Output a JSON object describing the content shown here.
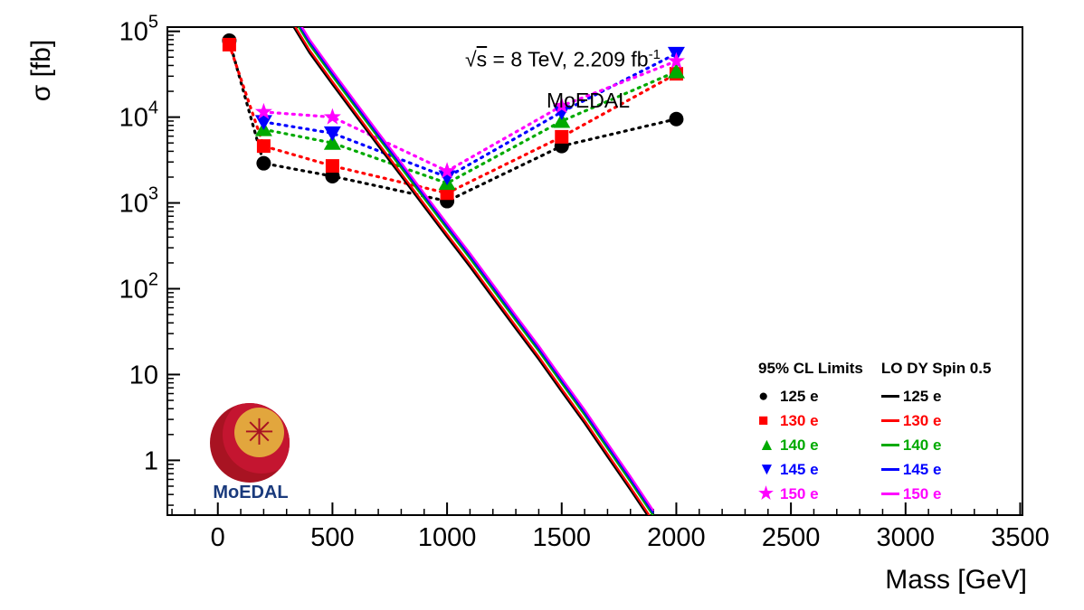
{
  "annotations": {
    "sqrt": "√",
    "s": "s",
    "rest": " = 8 TeV, 2.209 fb",
    "sup": "-1",
    "experiment": "MoEDAL"
  },
  "legend": {
    "col1_header": "95% CL Limits",
    "col2_header": "LO DY Spin 0.5",
    "dash": "—",
    "items": [
      {
        "label": "125 e",
        "color": "#000000",
        "marker": "circle"
      },
      {
        "label": "130 e",
        "color": "#ff0000",
        "marker": "square"
      },
      {
        "label": "140 e",
        "color": "#00aa00",
        "marker": "triangle-up"
      },
      {
        "label": "145 e",
        "color": "#0000ff",
        "marker": "triangle-down"
      },
      {
        "label": "150 e",
        "color": "#ff00ff",
        "marker": "star"
      }
    ]
  },
  "logo": {
    "label": "MoEDAL",
    "colors": {
      "sphere": "#a81322",
      "disc": "#e2a63d",
      "star": "#a81322",
      "text": "#1a3a7c"
    }
  },
  "chart_data": {
    "type": "line",
    "title": "√s = 8 TeV, 2.209 fb-1, MoEDAL",
    "xlabel": "Mass [GeV]",
    "ylabel": "σ [fb]",
    "x_range": [
      -220,
      3510
    ],
    "x_ticks": [
      0,
      500,
      1000,
      1500,
      2000,
      2500,
      3000,
      3500
    ],
    "x_minor_step": 100,
    "y_scale": "log",
    "y_range": [
      0.23,
      112000
    ],
    "y_ticks": [
      {
        "v": 1,
        "b": "1",
        "e": ""
      },
      {
        "v": 10,
        "b": "10",
        "e": ""
      },
      {
        "v": 100,
        "b": "10",
        "e": "2"
      },
      {
        "v": 1000,
        "b": "10",
        "e": "3"
      },
      {
        "v": 10000,
        "b": "10",
        "e": "4"
      },
      {
        "v": 100000,
        "b": "10",
        "e": "5"
      }
    ],
    "limit_series": [
      {
        "name": "125 e",
        "color": "#000000",
        "marker": "circle",
        "x": [
          50,
          200,
          500,
          1000,
          1500,
          2000
        ],
        "y": [
          78000,
          2900,
          2050,
          1050,
          4600,
          9500
        ]
      },
      {
        "name": "130 e",
        "color": "#ff0000",
        "marker": "square",
        "x": [
          50,
          200,
          500,
          1000,
          1500,
          2000
        ],
        "y": [
          70000,
          4600,
          2700,
          1300,
          5900,
          32000
        ]
      },
      {
        "name": "140 e",
        "color": "#00aa00",
        "marker": "triangle-up",
        "x": [
          200,
          500,
          1000,
          1500,
          2000
        ],
        "y": [
          7200,
          5000,
          1700,
          9000,
          34000
        ]
      },
      {
        "name": "145 e",
        "color": "#0000ff",
        "marker": "triangle-down",
        "x": [
          200,
          500,
          1000,
          1500,
          2000
        ],
        "y": [
          8800,
          6500,
          2000,
          11500,
          55000
        ]
      },
      {
        "name": "150 e",
        "color": "#ff00ff",
        "marker": "star",
        "x": [
          200,
          500,
          1000,
          1500,
          2000
        ],
        "y": [
          11500,
          10000,
          2350,
          13500,
          45000
        ]
      }
    ],
    "dy_series": {
      "base_x": [
        320,
        400,
        500,
        600,
        700,
        800,
        900,
        1000,
        1100,
        1200,
        1300,
        1400,
        1500,
        1600,
        1700,
        1800,
        1900
      ],
      "base_y": [
        125000,
        56000,
        24000,
        10500,
        4600,
        2050,
        900,
        400,
        180,
        78,
        34,
        15,
        6.3,
        2.7,
        1.1,
        0.45,
        0.18
      ],
      "series": [
        {
          "name": "125 e",
          "color": "#000000",
          "scale": 1.0
        },
        {
          "name": "130 e",
          "color": "#ff0000",
          "scale": 1.08
        },
        {
          "name": "140 e",
          "color": "#00aa00",
          "scale": 1.25
        },
        {
          "name": "145 e",
          "color": "#0000ff",
          "scale": 1.35
        },
        {
          "name": "150 e",
          "color": "#ff00ff",
          "scale": 1.44
        }
      ]
    }
  }
}
